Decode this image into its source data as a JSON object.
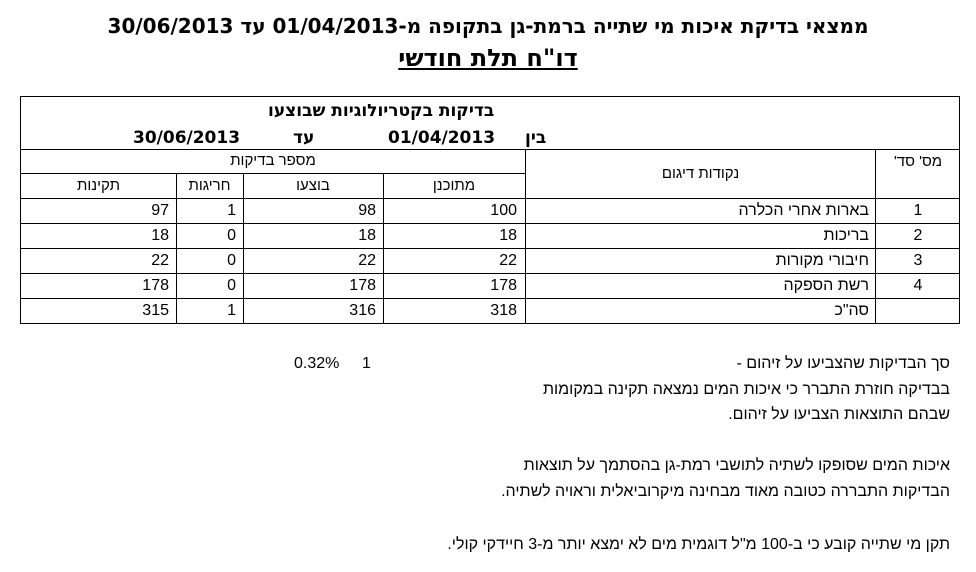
{
  "title_line": "ממצאי בדיקת איכות מי שתייה ברמת-גן בתקופה מ-01/04/2013  עד 30/06/2013",
  "report_title": "דו\"ח תלת חודשי",
  "table": {
    "caption": "בדיקות בקטריולוגיות  שבוצעו",
    "range_between_label": "בין",
    "range_from": "01/04/2013",
    "range_to_label": "עד",
    "range_to": "30/06/2013",
    "headers": {
      "serial": "מס' סד'",
      "sampling_points": "נקודות דיגום",
      "tests_count": "מספר בדיקות",
      "planned": "מתוכנן",
      "performed": "בוצעו",
      "exceptions": "חריגות",
      "valid": "תקינות"
    },
    "rows": [
      {
        "serial": "1",
        "point": "בארות אחרי הכלרה",
        "planned": "100",
        "performed": "98",
        "exceptions": "1",
        "valid": "97"
      },
      {
        "serial": "2",
        "point": "בריכות",
        "planned": "18",
        "performed": "18",
        "exceptions": "0",
        "valid": "18"
      },
      {
        "serial": "3",
        "point": "חיבורי  מקורות",
        "planned": "22",
        "performed": "22",
        "exceptions": "0",
        "valid": "22"
      },
      {
        "serial": "4",
        "point": "רשת הספקה",
        "planned": "178",
        "performed": "178",
        "exceptions": "0",
        "valid": "178"
      }
    ],
    "total": {
      "label": "סה\"כ",
      "planned": "318",
      "performed": "316",
      "exceptions": "1",
      "valid": "315"
    }
  },
  "summary": {
    "contamination_label": "סך הבדיקות שהצביעו  על זיהום -",
    "contamination_count": "1",
    "contamination_percent": "0.32%",
    "recheck_line1": "בבדיקה חוזרת התברר כי איכות המים נמצאה תקינה במקומות",
    "recheck_line2": "שבהם התוצאות הצביעו על זיהום.",
    "quality_line1": "איכות המים שסופקו לשתיה לתושבי רמת-גן בהסתמך על תוצאות",
    "quality_line2": "הבדיקות התבררה כטובה מאוד מבחינה מיקרוביאלית וראויה לשתיה.",
    "standard_line": "תקן מי שתייה קובע כי ב-100 מ\"ל דוגמית מים לא ימצא יותר מ-3 חיידקי קולי."
  }
}
